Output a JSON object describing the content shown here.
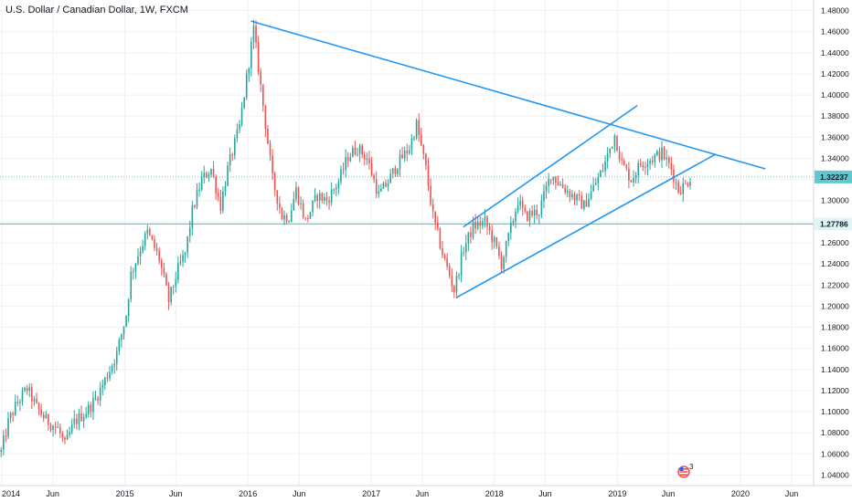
{
  "header": {
    "title": "U.S. Dollar / Canadian Dollar, 1W, FXCM"
  },
  "colors": {
    "up": "#26a69a",
    "down": "#ef5350",
    "trendline": "#2196f3",
    "level": "#5fc9cf",
    "grid": "#eef1f5"
  },
  "chart_data": {
    "type": "candlestick",
    "title": "U.S. Dollar / Canadian Dollar, 1W, FXCM",
    "ylim": [
      1.03,
      1.49
    ],
    "y_ticks": [
      "1.04000",
      "1.06000",
      "1.08000",
      "1.10000",
      "1.12000",
      "1.14000",
      "1.16000",
      "1.18000",
      "1.20000",
      "1.22000",
      "1.24000",
      "1.26000",
      "1.28000",
      "1.30000",
      "1.32000",
      "1.34000",
      "1.36000",
      "1.38000",
      "1.40000",
      "1.42000",
      "1.44000",
      "1.46000",
      "1.48000"
    ],
    "x_ticks": [
      "2014",
      "Jun",
      "2015",
      "Jun",
      "2016",
      "Jun",
      "2017",
      "Jun",
      "2018",
      "Jun",
      "2019",
      "Jun",
      "2020",
      "Jun"
    ],
    "x_tick_dates": [
      "2014-01-01",
      "2014-06-01",
      "2015-01-01",
      "2015-06-01",
      "2016-01-01",
      "2016-06-01",
      "2017-01-01",
      "2017-06-01",
      "2018-01-01",
      "2018-06-01",
      "2019-01-01",
      "2019-06-01",
      "2020-01-01",
      "2020-06-01"
    ],
    "price_labels": [
      {
        "value": 1.32237,
        "label": "1.32237",
        "bg": "#5fc9cf",
        "color": "#131722"
      },
      {
        "value": 1.27786,
        "label": "1.27786",
        "bg": "#e0f4f6",
        "color": "#131722"
      }
    ],
    "horizontal_levels": [
      1.32237,
      1.27786
    ],
    "trendlines": [
      {
        "from": [
          "2016-01-10",
          1.47
        ],
        "to": [
          "2020-03-15",
          1.33
        ]
      },
      {
        "from": [
          "2017-10-01",
          1.275
        ],
        "to": [
          "2019-03-01",
          1.39
        ]
      },
      {
        "from": [
          "2017-09-10",
          1.208
        ],
        "to": [
          "2019-10-20",
          1.344
        ]
      }
    ],
    "path": [
      [
        "2013-12-30",
        1.062
      ],
      [
        "2014-01-20",
        1.09
      ],
      [
        "2014-02-10",
        1.105
      ],
      [
        "2014-03-17",
        1.122
      ],
      [
        "2014-04-14",
        1.104
      ],
      [
        "2014-05-12",
        1.092
      ],
      [
        "2014-06-16",
        1.084
      ],
      [
        "2014-07-07",
        1.068
      ],
      [
        "2014-08-04",
        1.09
      ],
      [
        "2014-09-08",
        1.1
      ],
      [
        "2014-10-06",
        1.112
      ],
      [
        "2014-11-03",
        1.13
      ],
      [
        "2014-12-08",
        1.155
      ],
      [
        "2015-01-05",
        1.192
      ],
      [
        "2015-01-19",
        1.23
      ],
      [
        "2015-02-16",
        1.255
      ],
      [
        "2015-03-09",
        1.27
      ],
      [
        "2015-04-13",
        1.245
      ],
      [
        "2015-05-11",
        1.205
      ],
      [
        "2015-06-08",
        1.235
      ],
      [
        "2015-06-29",
        1.25
      ],
      [
        "2015-07-20",
        1.29
      ],
      [
        "2015-08-17",
        1.32
      ],
      [
        "2015-09-14",
        1.33
      ],
      [
        "2015-10-12",
        1.295
      ],
      [
        "2015-11-02",
        1.33
      ],
      [
        "2015-12-07",
        1.37
      ],
      [
        "2016-01-18",
        1.462
      ],
      [
        "2016-02-15",
        1.39
      ],
      [
        "2016-03-14",
        1.32
      ],
      [
        "2016-04-11",
        1.285
      ],
      [
        "2016-05-02",
        1.285
      ],
      [
        "2016-05-23",
        1.31
      ],
      [
        "2016-06-20",
        1.28
      ],
      [
        "2016-07-25",
        1.305
      ],
      [
        "2016-08-22",
        1.3
      ],
      [
        "2016-09-26",
        1.318
      ],
      [
        "2016-10-24",
        1.342
      ],
      [
        "2016-11-21",
        1.35
      ],
      [
        "2016-12-19",
        1.34
      ],
      [
        "2017-01-23",
        1.305
      ],
      [
        "2017-02-20",
        1.318
      ],
      [
        "2017-03-20",
        1.335
      ],
      [
        "2017-04-24",
        1.35
      ],
      [
        "2017-05-15",
        1.372
      ],
      [
        "2017-06-12",
        1.33
      ],
      [
        "2017-07-03",
        1.285
      ],
      [
        "2017-07-31",
        1.25
      ],
      [
        "2017-09-04",
        1.215
      ],
      [
        "2017-10-02",
        1.255
      ],
      [
        "2017-10-30",
        1.275
      ],
      [
        "2017-12-04",
        1.28
      ],
      [
        "2018-01-01",
        1.26
      ],
      [
        "2018-01-22",
        1.24
      ],
      [
        "2018-02-12",
        1.265
      ],
      [
        "2018-03-12",
        1.3
      ],
      [
        "2018-04-02",
        1.285
      ],
      [
        "2018-05-14",
        1.29
      ],
      [
        "2018-06-18",
        1.325
      ],
      [
        "2018-07-16",
        1.315
      ],
      [
        "2018-08-20",
        1.305
      ],
      [
        "2018-09-24",
        1.295
      ],
      [
        "2018-10-15",
        1.308
      ],
      [
        "2018-11-19",
        1.33
      ],
      [
        "2018-12-24",
        1.362
      ],
      [
        "2019-01-14",
        1.335
      ],
      [
        "2019-02-11",
        1.32
      ],
      [
        "2019-03-11",
        1.335
      ],
      [
        "2019-04-15",
        1.34
      ],
      [
        "2019-05-13",
        1.345
      ],
      [
        "2019-06-10",
        1.33
      ],
      [
        "2019-07-01",
        1.31
      ],
      [
        "2019-07-22",
        1.315
      ],
      [
        "2019-08-05",
        1.322
      ]
    ]
  }
}
